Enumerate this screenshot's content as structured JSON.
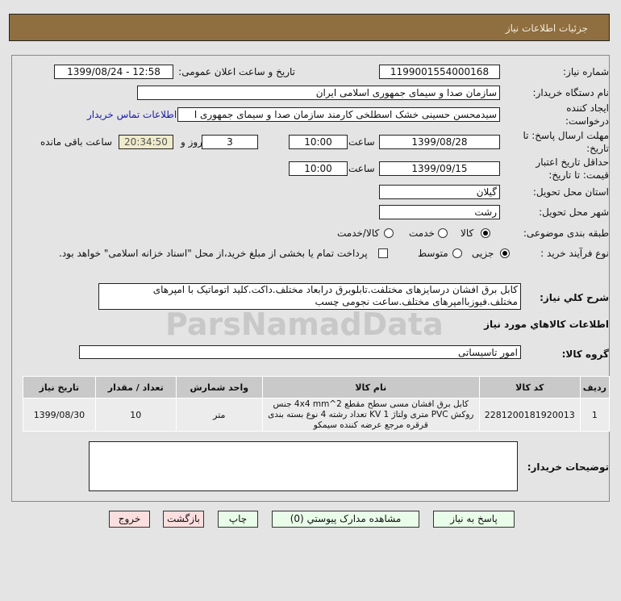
{
  "header": {
    "title": "جزئیات اطلاعات نیاز"
  },
  "form": {
    "need_number_label": "شماره نیاز:",
    "need_number": "1199001554000168",
    "announce_label": "تاریخ و ساعت اعلان عمومی:",
    "announce_value": "1399/08/24 - 12:58",
    "buyer_org_label": "نام دستگاه خریدار:",
    "buyer_org": "سازمان صدا و سیمای جمهوری اسلامی ایران",
    "creator_label": "ایجاد کننده درخواست:",
    "creator": "سیدمحسن حسینی خشک اسطلخی کارمند سازمان صدا و سیمای جمهوری ا",
    "contact_link": "اطلاعات تماس خریدار",
    "deadline_label": "مهلت ارسال پاسخ: تا تاریخ:",
    "deadline_date": "1399/08/28",
    "time_label": "ساعت",
    "deadline_time": "10:00",
    "days": "3",
    "days_label": "روز و",
    "remaining": "20:34:50",
    "remaining_label": "ساعت باقی مانده",
    "validity_label": "حداقل تاریخ اعتبار قیمت: تا تاریخ:",
    "validity_date": "1399/09/15",
    "validity_time": "10:00",
    "province_label": "استان محل تحویل:",
    "province": "گیلان",
    "city_label": "شهر محل تحویل:",
    "city": "رشت",
    "category_label": "طبقه بندی موضوعی:",
    "category_options": [
      "کالا",
      "خدمت",
      "کالا/خدمت"
    ],
    "category_selected": "کالا",
    "process_label": "نوع فرآیند خرید :",
    "process_options": [
      "جزیی",
      "متوسط"
    ],
    "process_selected": "جزیی",
    "payment_note": "پرداخت تمام یا بخشی از مبلغ خرید،از محل \"اسناد خزانه اسلامی\" خواهد بود.",
    "payment_checked": false
  },
  "description": {
    "label": "شرح كلي نیاز:",
    "text": "کابل برق افشان درسایزهای مختلفت.تابلوبرق درابعاد مختلف.داکت.کلید اتوماتیک با امپرهای مختلف.فیوزباامپرهای مختلف.ساعت نجومی چسب"
  },
  "goods": {
    "title": "اطلاعات كالاهاي مورد نیاز",
    "group_label": "گروه كالا:",
    "group": "امور تاسیساتی",
    "columns": [
      "ردیف",
      "کد کالا",
      "نام کالا",
      "واحد شمارش",
      "تعداد / مقدار",
      "تاریخ نیاز"
    ],
    "rows": [
      [
        "1",
        "2281200181920013",
        "کابل برق افشان مسی سطح مقطع 4x4 mm^2 جنس روکش PVC متری ولتاژ 1 KV تعداد رشته 4 نوع بسته بندی قرقره مرجع عرضه کننده سیمکو",
        "متر",
        "10",
        "1399/08/30"
      ]
    ]
  },
  "notes": {
    "label": "توضیحات خریدار:",
    "text": ""
  },
  "buttons": {
    "reply": "پاسخ به نیاز",
    "attachments": "مشاهده مدارک پیوستي (0)",
    "print": "چاپ",
    "back": "بازگشت",
    "exit": "خروج"
  },
  "watermark": {
    "text": "ParsNamadData"
  }
}
